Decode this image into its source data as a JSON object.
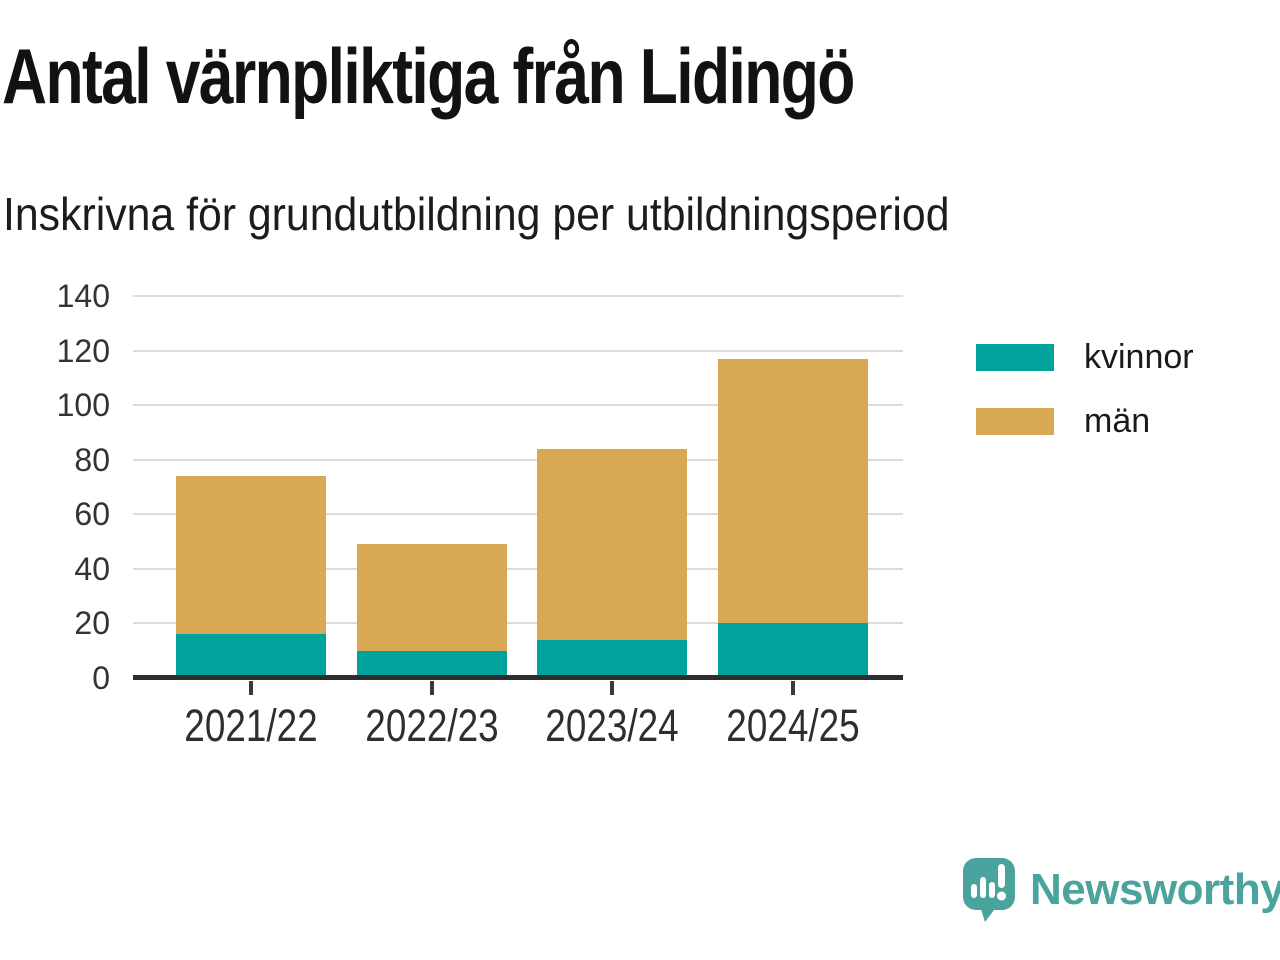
{
  "header": {
    "title": "Antal värnpliktiga från Lidingö",
    "subtitle": "Inskrivna för grundutbildning per utbildningsperiod"
  },
  "chart_data": {
    "type": "bar",
    "stacked": true,
    "title": "Antal värnpliktiga från Lidingö",
    "subtitle": "Inskrivna för grundutbildning per utbildningsperiod",
    "categories": [
      "2021/22",
      "2022/23",
      "2023/24",
      "2024/25"
    ],
    "series": [
      {
        "name": "kvinnor",
        "color": "#00a39b",
        "values": [
          16,
          10,
          14,
          20
        ]
      },
      {
        "name": "män",
        "color": "#d9a855",
        "values": [
          58,
          39,
          70,
          97
        ]
      }
    ],
    "totals": [
      74,
      49,
      84,
      117
    ],
    "xlabel": "",
    "ylabel": "",
    "ylim": [
      0,
      140
    ],
    "yticks": [
      0,
      20,
      40,
      60,
      80,
      100,
      120,
      140
    ],
    "grid": "horizontal",
    "legend_position": "right"
  },
  "colors": {
    "series_kvinnor": "#00a39b",
    "series_man": "#d9a855",
    "gridline": "#dcdcdc",
    "axis": "#2d2d2d",
    "label_text": "#333333",
    "brand_teal": "#4aa39d"
  },
  "branding": {
    "name": "Newsworthy",
    "icon": "speech-bubble-bar-chart-icon"
  }
}
